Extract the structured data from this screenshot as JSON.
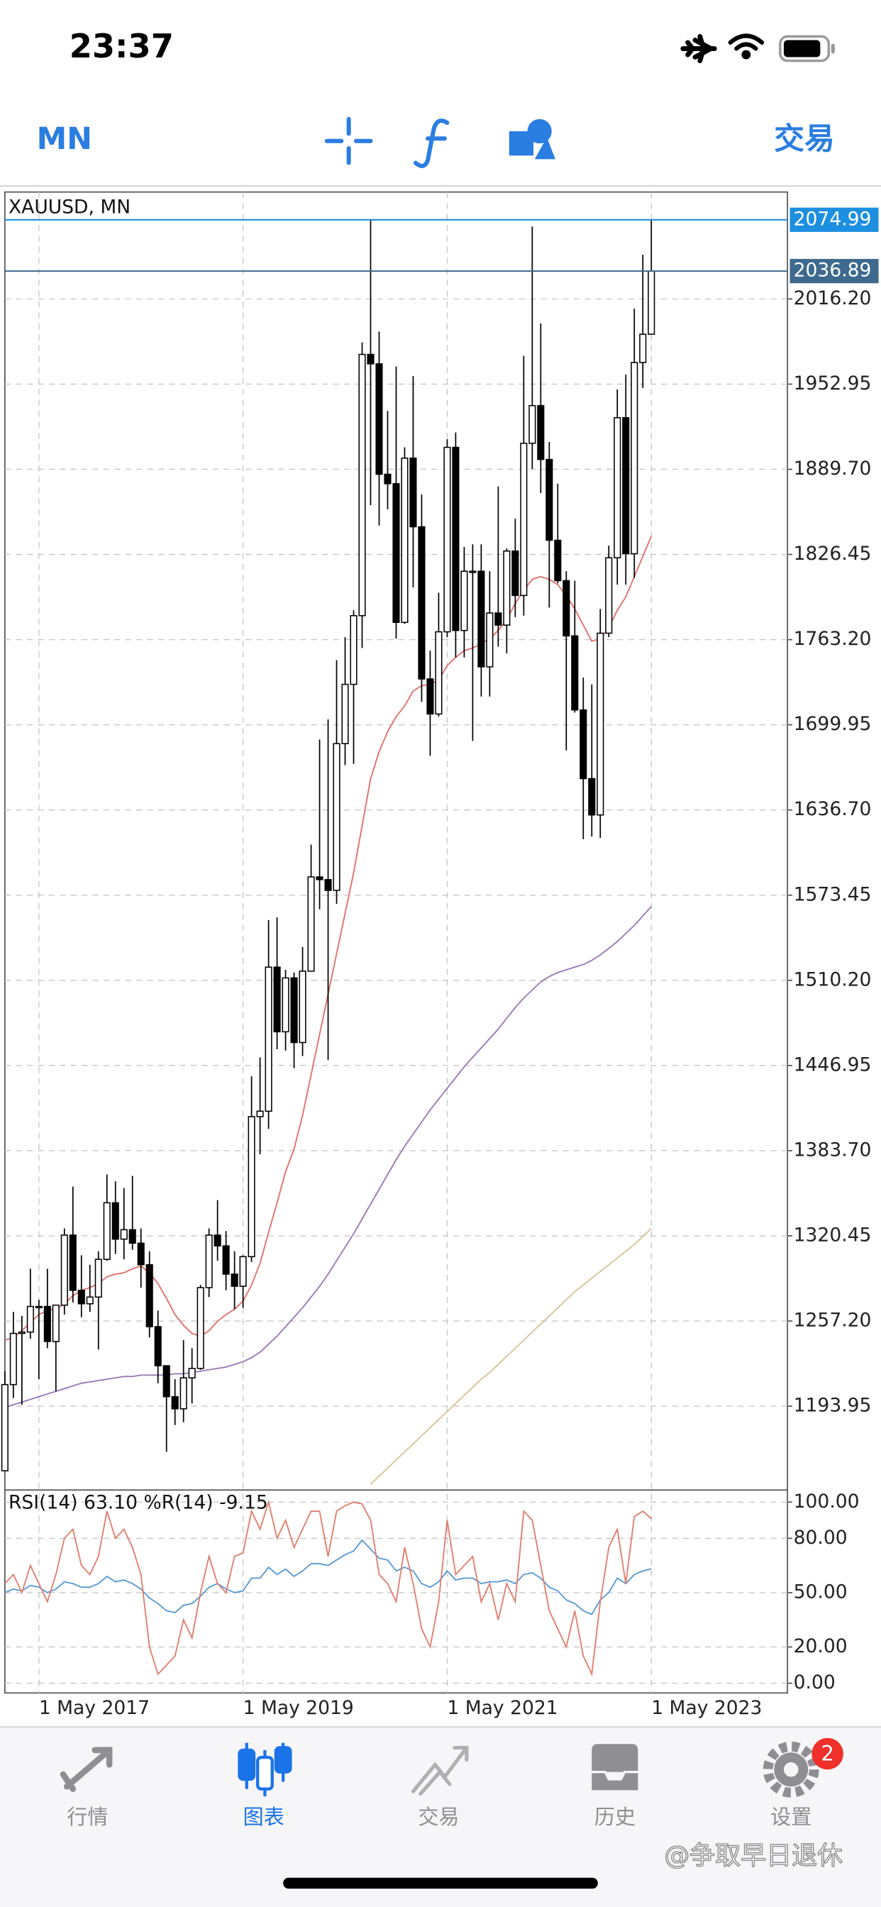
{
  "status_bar": {
    "time": "23:37"
  },
  "toolbar": {
    "timeframe": "MN",
    "trade": "交易"
  },
  "chart_data": [
    {
      "type": "candlestick",
      "title": "XAUUSD, MN",
      "categories": [
        null,
        null,
        null,
        null,
        "1 May 2017",
        null,
        null,
        null,
        null,
        null,
        null,
        null,
        null,
        null,
        null,
        null,
        null,
        null,
        null,
        null,
        null,
        null,
        null,
        null,
        null,
        null,
        null,
        null,
        "1 May 2019",
        null,
        null,
        null,
        null,
        null,
        null,
        null,
        null,
        null,
        null,
        null,
        null,
        null,
        null,
        null,
        null,
        null,
        null,
        null,
        null,
        null,
        null,
        null,
        "1 May 2021",
        null,
        null,
        null,
        null,
        null,
        null,
        null,
        null,
        null,
        null,
        null,
        null,
        null,
        null,
        null,
        null,
        null,
        null,
        null,
        null,
        null,
        null,
        null,
        "1 May 2023"
      ],
      "open": [
        1146,
        1210,
        1248,
        1249,
        1268,
        1268,
        1242,
        1269,
        1321,
        1280,
        1270,
        1275,
        1303,
        1345,
        1318,
        1325,
        1315,
        1299,
        1253,
        1224,
        1201,
        1192,
        1215,
        1222,
        1282,
        1321,
        1313,
        1292,
        1283,
        1305,
        1409,
        1413,
        1520,
        1472,
        1512,
        1464,
        1517,
        1587,
        1585,
        1577,
        1686,
        1730,
        1781,
        1975,
        1968,
        1886,
        1879,
        1776,
        1898,
        1847,
        1734,
        1708,
        1769,
        1906,
        1770,
        1814,
        1814,
        1743,
        1783,
        1774,
        1829,
        1796,
        1909,
        1937,
        1897,
        1837,
        1807,
        1766,
        1711,
        1660,
        1633,
        1768,
        1824,
        1928,
        1827,
        1969,
        1990
      ],
      "high": [
        1220,
        1264,
        1261,
        1296,
        1273,
        1296,
        1269,
        1326,
        1357,
        1306,
        1299,
        1309,
        1366,
        1361,
        1356,
        1365,
        1326,
        1309,
        1265,
        1224,
        1214,
        1243,
        1237,
        1284,
        1326,
        1347,
        1324,
        1309,
        1306,
        1439,
        1453,
        1555,
        1557,
        1518,
        1516,
        1535,
        1611,
        1689,
        1704,
        1748,
        1765,
        1785,
        1984,
        2075,
        1992,
        1933,
        1966,
        1906,
        1959,
        1871,
        1755,
        1798,
        1912,
        1917,
        1832,
        1834,
        1834,
        1814,
        1877,
        1831,
        1853,
        1974,
        2070,
        1998,
        1910,
        1879,
        1814,
        1807,
        1735,
        1730,
        1786,
        1833,
        1949,
        1960,
        2009,
        2049,
        2074.99
      ],
      "low": [
        1146,
        1200,
        1195,
        1244,
        1214,
        1237,
        1205,
        1262,
        1271,
        1260,
        1264,
        1236,
        1302,
        1307,
        1303,
        1310,
        1282,
        1245,
        1211,
        1160,
        1180,
        1182,
        1196,
        1221,
        1275,
        1302,
        1280,
        1266,
        1267,
        1301,
        1381,
        1400,
        1459,
        1458,
        1445,
        1454,
        1517,
        1563,
        1451,
        1567,
        1670,
        1671,
        1757,
        1863,
        1848,
        1860,
        1764,
        1775,
        1802,
        1717,
        1677,
        1706,
        1765,
        1750,
        1750,
        1688,
        1721,
        1721,
        1758,
        1753,
        1780,
        1781,
        1890,
        1872,
        1787,
        1805,
        1681,
        1709,
        1615,
        1617,
        1616,
        1765,
        1804,
        1804,
        1809,
        1950,
        1990
      ],
      "close": [
        1210,
        1248,
        1249,
        1268,
        1268,
        1242,
        1269,
        1321,
        1280,
        1270,
        1275,
        1303,
        1345,
        1318,
        1325,
        1315,
        1299,
        1253,
        1224,
        1201,
        1192,
        1215,
        1222,
        1282,
        1321,
        1313,
        1292,
        1283,
        1305,
        1409,
        1413,
        1520,
        1472,
        1512,
        1464,
        1517,
        1587,
        1585,
        1577,
        1686,
        1730,
        1781,
        1975,
        1968,
        1886,
        1879,
        1776,
        1898,
        1847,
        1734,
        1708,
        1769,
        1906,
        1770,
        1814,
        1814,
        1743,
        1783,
        1774,
        1829,
        1796,
        1909,
        1937,
        1897,
        1837,
        1807,
        1766,
        1711,
        1660,
        1633,
        1768,
        1824,
        1928,
        1827,
        1969,
        1990,
        2036.89
      ],
      "up_color": "#ffffff",
      "down_color": "#000000",
      "overlays": [
        {
          "color": "#e0726c",
          "values": [
            1243,
            1245,
            1250,
            1256,
            1262,
            1265,
            1266,
            1270,
            1276,
            1280,
            1282,
            1285,
            1290,
            1292,
            1293,
            1296,
            1298,
            1293,
            1285,
            1274,
            1262,
            1254,
            1248,
            1246,
            1250,
            1257,
            1262,
            1266,
            1272,
            1284,
            1300,
            1323,
            1345,
            1368,
            1385,
            1410,
            1440,
            1470,
            1500,
            1530,
            1560,
            1590,
            1625,
            1660,
            1680,
            1695,
            1706,
            1714,
            1725,
            1729,
            1730,
            1733,
            1744,
            1750,
            1755,
            1757,
            1760,
            1764,
            1770,
            1778,
            1790,
            1800,
            1808,
            1810,
            1808,
            1804,
            1796,
            1786,
            1774,
            1762,
            1764,
            1772,
            1785,
            1795,
            1810,
            1825,
            1840
          ]
        },
        {
          "color": "#9a7bb5",
          "values": [
            1193,
            1195,
            1197,
            1199,
            1201,
            1203,
            1205,
            1207,
            1209,
            1211,
            1212,
            1213,
            1214,
            1215,
            1216,
            1216,
            1217,
            1217,
            1217,
            1217,
            1218,
            1218,
            1219,
            1220,
            1221,
            1222,
            1223,
            1225,
            1227,
            1230,
            1234,
            1240,
            1246,
            1253,
            1260,
            1267,
            1275,
            1283,
            1292,
            1302,
            1312,
            1322,
            1333,
            1344,
            1355,
            1366,
            1377,
            1387,
            1396,
            1405,
            1414,
            1422,
            1430,
            1438,
            1446,
            1453,
            1460,
            1467,
            1474,
            1482,
            1490,
            1497,
            1503,
            1509,
            1513,
            1516,
            1518,
            1520,
            1522,
            1525,
            1529,
            1534,
            1539,
            1545,
            1551,
            1558,
            1565
          ]
        },
        {
          "color": "#d8c49a",
          "values": [
            null,
            null,
            null,
            null,
            null,
            null,
            null,
            null,
            null,
            null,
            null,
            null,
            null,
            null,
            null,
            null,
            null,
            null,
            null,
            null,
            null,
            null,
            null,
            null,
            null,
            null,
            null,
            null,
            null,
            null,
            null,
            null,
            null,
            null,
            null,
            null,
            null,
            null,
            null,
            null,
            null,
            null,
            null,
            1136,
            1142,
            1148,
            1154,
            1160,
            1166,
            1172,
            1178,
            1184,
            1190,
            1196,
            1202,
            1208,
            1214,
            1219,
            1225,
            1231,
            1237,
            1243,
            1249,
            1255,
            1261,
            1267,
            1273,
            1279,
            1284,
            1289,
            1294,
            1299,
            1304,
            1309,
            1314,
            1320,
            1326
          ]
        }
      ],
      "price_lines": [
        {
          "value": 2074.99,
          "color": "#1d8fe1"
        },
        {
          "value": 2036.89,
          "color": "#3d6a8e"
        }
      ],
      "ylim": [
        1131.7,
        2095.6
      ],
      "yticks": [
        {
          "value": 2016.2,
          "label": "2016.20"
        },
        1952.95,
        {
          "value": 1889.7,
          "label": "1889.70"
        },
        1826.45,
        {
          "value": 1763.2,
          "label": "1763.20"
        },
        1699.95,
        {
          "value": 1636.7,
          "label": "1636.70"
        },
        1573.45,
        {
          "value": 1510.2,
          "label": "1510.20"
        },
        1446.95,
        {
          "value": 1383.7,
          "label": "1383.70"
        },
        1320.45,
        {
          "value": 1257.2,
          "label": "1257.20"
        },
        1193.95
      ],
      "grid": true
    },
    {
      "type": "line",
      "title": "RSI(14) 63.10 %R(14) -9.15",
      "series": [
        {
          "color": "#5b9bd5",
          "values": [
            50,
            52,
            51,
            54,
            53,
            50,
            52,
            56,
            55,
            53,
            53,
            55,
            59,
            56,
            57,
            55,
            52,
            47,
            44,
            40,
            39,
            43,
            44,
            48,
            53,
            55,
            52,
            50,
            51,
            58,
            58,
            64,
            60,
            63,
            59,
            62,
            66,
            66,
            65,
            68,
            71,
            73,
            79,
            74,
            69,
            68,
            62,
            64,
            62,
            55,
            53,
            56,
            62,
            57,
            58,
            58,
            55,
            56,
            56,
            57,
            55,
            60,
            61,
            58,
            53,
            51,
            46,
            44,
            40,
            38,
            46,
            50,
            58,
            55,
            60,
            62,
            63.1
          ]
        },
        {
          "color": "#e08070",
          "axis": "y2",
          "values": [
            -45,
            -40,
            -50,
            -35,
            -45,
            -55,
            -40,
            -20,
            -15,
            -35,
            -40,
            -30,
            -5,
            -20,
            -15,
            -25,
            -40,
            -80,
            -95,
            -90,
            -85,
            -65,
            -75,
            -50,
            -30,
            -45,
            -50,
            -30,
            -28,
            -5,
            -15,
            0,
            -20,
            -10,
            -25,
            -15,
            -5,
            -5,
            -30,
            -5,
            -2,
            0,
            -1,
            -10,
            -40,
            -45,
            -55,
            -25,
            -45,
            -70,
            -80,
            -55,
            -10,
            -40,
            -35,
            -30,
            -55,
            -45,
            -65,
            -45,
            -55,
            -5,
            -10,
            -35,
            -60,
            -70,
            -80,
            -60,
            -85,
            -95,
            -55,
            -25,
            -15,
            -45,
            -8,
            -5,
            -9.15
          ]
        }
      ],
      "ylim": [
        -5.4,
        106
      ],
      "y2lim": [
        -105.4,
        6
      ],
      "yticks": [
        {
          "value": 100,
          "label": "100.00"
        },
        {
          "value": 80,
          "label": "80.00"
        },
        {
          "value": 50,
          "label": "50.00"
        },
        {
          "value": 20,
          "label": "20.00"
        },
        {
          "value": 0,
          "label": "0.00"
        }
      ],
      "grid": true
    }
  ],
  "tab_bar": {
    "items": [
      "行情",
      "图表",
      "交易",
      "历史",
      "设置"
    ],
    "active": 1,
    "badge": "2"
  },
  "watermark": "@争取早日退休"
}
